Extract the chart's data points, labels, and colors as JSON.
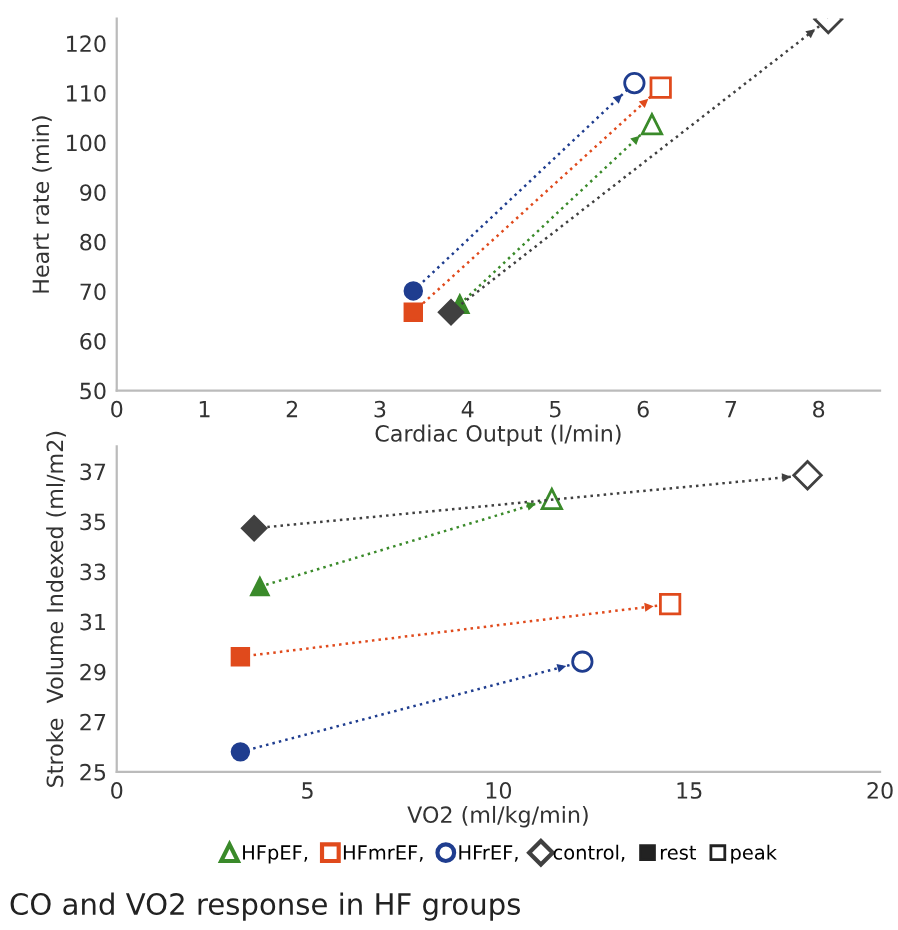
{
  "chart_data": [
    {
      "type": "line",
      "xlabel": "Cardiac Output (l/min)",
      "ylabel": "Heart rate (min)",
      "xlim": [
        0,
        8.7
      ],
      "xticks": [
        0,
        1,
        2,
        3,
        4,
        5,
        6,
        7,
        8
      ],
      "ylim": [
        50,
        125
      ],
      "yticks": [
        50,
        60,
        70,
        80,
        90,
        100,
        110,
        120
      ],
      "grid": false,
      "legend": false,
      "line_style": "dotted",
      "series": [
        {
          "marker": "triangle",
          "color": "#3a8a2a",
          "x": [
            3.91,
            6.1
          ],
          "values": [
            67.4,
            103.7
          ]
        },
        {
          "marker": "square",
          "color": "#e04a1c",
          "x": [
            3.38,
            6.2
          ],
          "values": [
            65.8,
            111.1
          ]
        },
        {
          "marker": "circle",
          "color": "#1f3d8f",
          "x": [
            3.38,
            5.9
          ],
          "values": [
            70.1,
            112
          ]
        },
        {
          "marker": "diamond",
          "color": "#404040",
          "x": [
            3.81,
            8.11
          ],
          "values": [
            65.8,
            124.9
          ]
        }
      ]
    },
    {
      "type": "line",
      "xlabel": "VO2 (ml/kg/min)",
      "ylabel": "Stroke  Volume Indexed (ml/m2)",
      "xlim": [
        0,
        20
      ],
      "xticks": [
        0,
        5,
        10,
        15,
        20
      ],
      "ylim": [
        25,
        38
      ],
      "yticks": [
        25,
        27,
        29,
        31,
        33,
        35,
        37
      ],
      "grid": false,
      "legend": "bottom",
      "line_style": "dotted",
      "annotations": [
        "rest",
        "peak",
        "CO and VO2 response in HF groups"
      ],
      "series": [
        {
          "name": "HFpEF,",
          "marker": "triangle",
          "color": "#3a8a2a",
          "x": [
            3.75,
            11.4
          ],
          "values": [
            32.4,
            35.9
          ]
        },
        {
          "name": "HFmrEF,",
          "marker": "square",
          "color": "#e04a1c",
          "x": [
            3.24,
            14.5
          ],
          "values": [
            29.6,
            31.7
          ]
        },
        {
          "name": "HFrEF,",
          "marker": "circle",
          "color": "#1f3d8f",
          "x": [
            3.24,
            12.2
          ],
          "values": [
            25.8,
            29.4
          ]
        },
        {
          "name": "control,",
          "marker": "diamond",
          "color": "#404040",
          "x": [
            3.6,
            18.1
          ],
          "values": [
            34.73,
            36.85
          ]
        }
      ]
    }
  ]
}
